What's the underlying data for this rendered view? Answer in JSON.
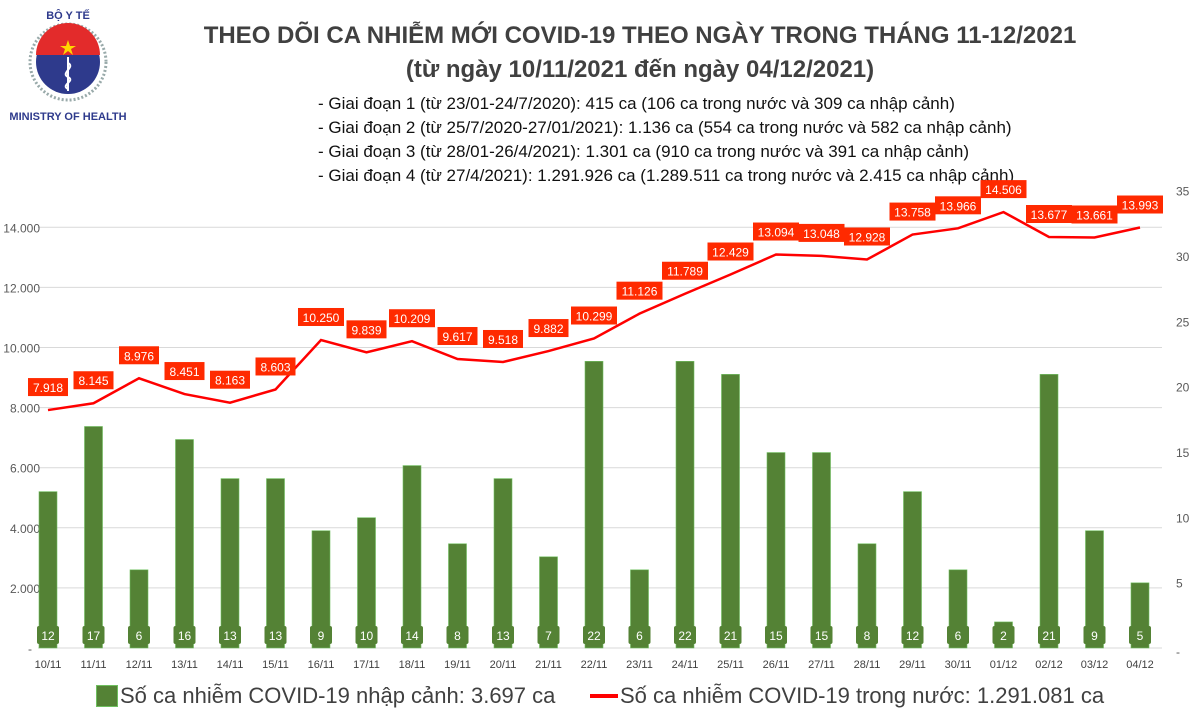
{
  "header": {
    "title": "THEO DÕI CA NHIỄM MỚI COVID-19 THEO NGÀY TRONG THÁNG 11-12/2021",
    "subtitle": "(từ ngày 10/11/2021 đến ngày 04/12/2021)",
    "logo_text": [
      "BỘ Y TẾ",
      "MINISTRY OF HEALTH"
    ],
    "notes": [
      "- Giai đoạn 1 (từ 23/01-24/7/2020): 415 ca (106 ca trong nước và 309 ca nhập cảnh)",
      "- Giai đoạn 2 (từ 25/7/2020-27/01/2021): 1.136 ca (554 ca trong nước và 582 ca nhập cảnh)",
      "- Giai đoạn 3 (từ 28/01-26/4/2021): 1.301 ca (910 ca trong nước và 391 ca nhập cảnh)",
      "- Giai đoạn 4 (từ 27/4/2021): 1.291.926 ca (1.289.511 ca trong nước và 2.415 ca nhập cảnh)"
    ]
  },
  "chart_data": {
    "type": "bar+line",
    "categories": [
      "10/11",
      "11/11",
      "12/11",
      "13/11",
      "14/11",
      "15/11",
      "16/11",
      "17/11",
      "18/11",
      "19/11",
      "20/11",
      "21/11",
      "22/11",
      "23/11",
      "24/11",
      "25/11",
      "26/11",
      "27/11",
      "28/11",
      "29/11",
      "30/11",
      "01/12",
      "02/12",
      "03/12",
      "04/12"
    ],
    "series": [
      {
        "name": "Số ca nhiễm COVID-19 nhập cảnh: 3.697 ca",
        "type": "bar",
        "axis": "right",
        "color": "#548235",
        "values": [
          12,
          17,
          6,
          16,
          13,
          13,
          9,
          10,
          14,
          8,
          13,
          7,
          22,
          6,
          22,
          21,
          15,
          15,
          8,
          12,
          6,
          2,
          21,
          9,
          5
        ]
      },
      {
        "name": "Số ca nhiễm COVID-19 trong nước: 1.291.081 ca",
        "type": "line",
        "axis": "left",
        "color": "#ff0000",
        "values": [
          7918,
          8145,
          8976,
          8451,
          8163,
          8603,
          10250,
          9839,
          10209,
          9617,
          9518,
          9882,
          10299,
          11126,
          11789,
          12429,
          13094,
          13048,
          12928,
          13758,
          13966,
          14506,
          13677,
          13661,
          13993
        ],
        "labels": [
          "7.918",
          "8.145",
          "8.976",
          "8.451",
          "8.163",
          "8.603",
          "10.250",
          "9.839",
          "10.209",
          "9.617",
          "9.518",
          "9.882",
          "10.299",
          "11.126",
          "11.789",
          "12.429",
          "13.094",
          "13.048",
          "12.928",
          "13.758",
          "13.966",
          "14.506",
          "13.677",
          "13.661",
          "13.993"
        ]
      }
    ],
    "left_axis": {
      "ylim": [
        0,
        14000
      ],
      "ticks": [
        "-",
        "2.000",
        "4.000",
        "6.000",
        "8.000",
        "10.000",
        "12.000",
        "14.000"
      ]
    },
    "right_axis": {
      "ylim": [
        0,
        35
      ],
      "ticks": [
        "-",
        "5",
        "10",
        "15",
        "20",
        "25",
        "30",
        "35"
      ]
    },
    "grid": true,
    "legend": "bottom"
  }
}
